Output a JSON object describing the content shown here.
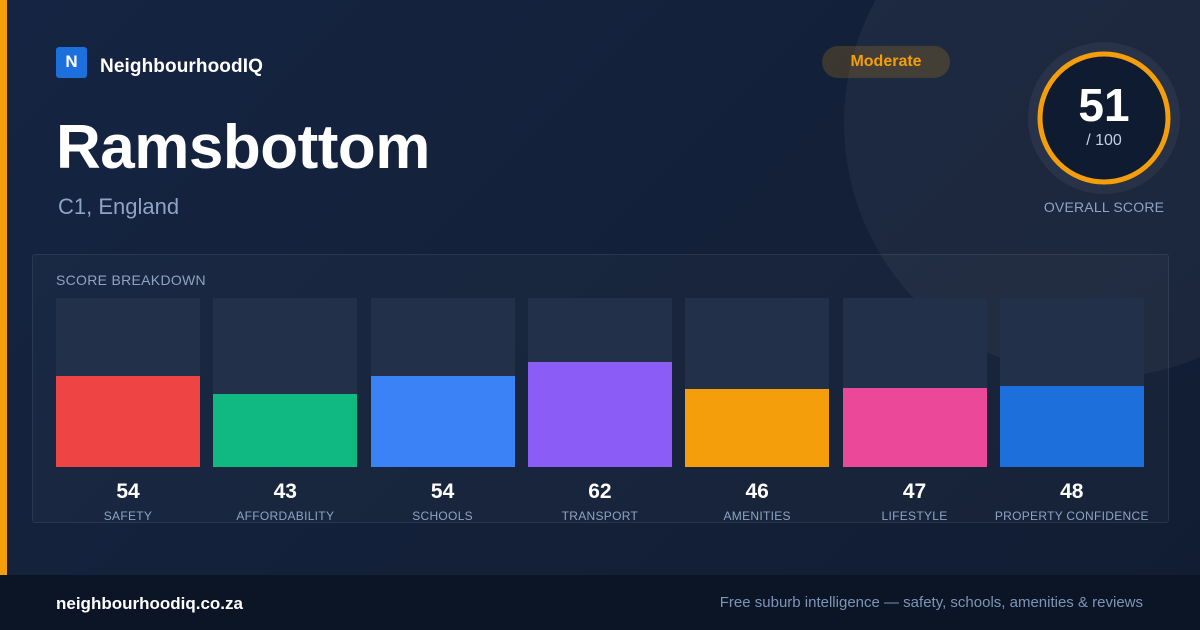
{
  "colors": {
    "accent": "#f59e0b",
    "brand_blue": "#1d6fdc",
    "background": "#14213a",
    "muted_text": "#8fa3c3"
  },
  "brand": {
    "logo_letter": "N",
    "name": "NeighbourhoodIQ"
  },
  "header": {
    "title": "Ramsbottom",
    "subtitle": "C1, England",
    "badge": "Moderate"
  },
  "overall_score": {
    "value": "51",
    "max_label": "/ 100",
    "fraction": 0.51,
    "caption": "OVERALL SCORE"
  },
  "breakdown": {
    "title": "SCORE BREAKDOWN",
    "max": 100
  },
  "chart_data": {
    "type": "bar",
    "categories": [
      "SAFETY",
      "AFFORDABILITY",
      "SCHOOLS",
      "TRANSPORT",
      "AMENITIES",
      "LIFESTYLE",
      "PROPERTY CONFIDENCE"
    ],
    "values": [
      54,
      43,
      54,
      62,
      46,
      47,
      48
    ],
    "colors": [
      "#ef4444",
      "#10b981",
      "#3b82f6",
      "#8b5cf6",
      "#f59e0b",
      "#ec4899",
      "#1d6fdc"
    ],
    "ylim": [
      0,
      100
    ],
    "grid": false
  },
  "footer": {
    "domain": "neighbourhoodiq.co.za",
    "tagline": "Free suburb intelligence — safety, schools, amenities & reviews"
  }
}
